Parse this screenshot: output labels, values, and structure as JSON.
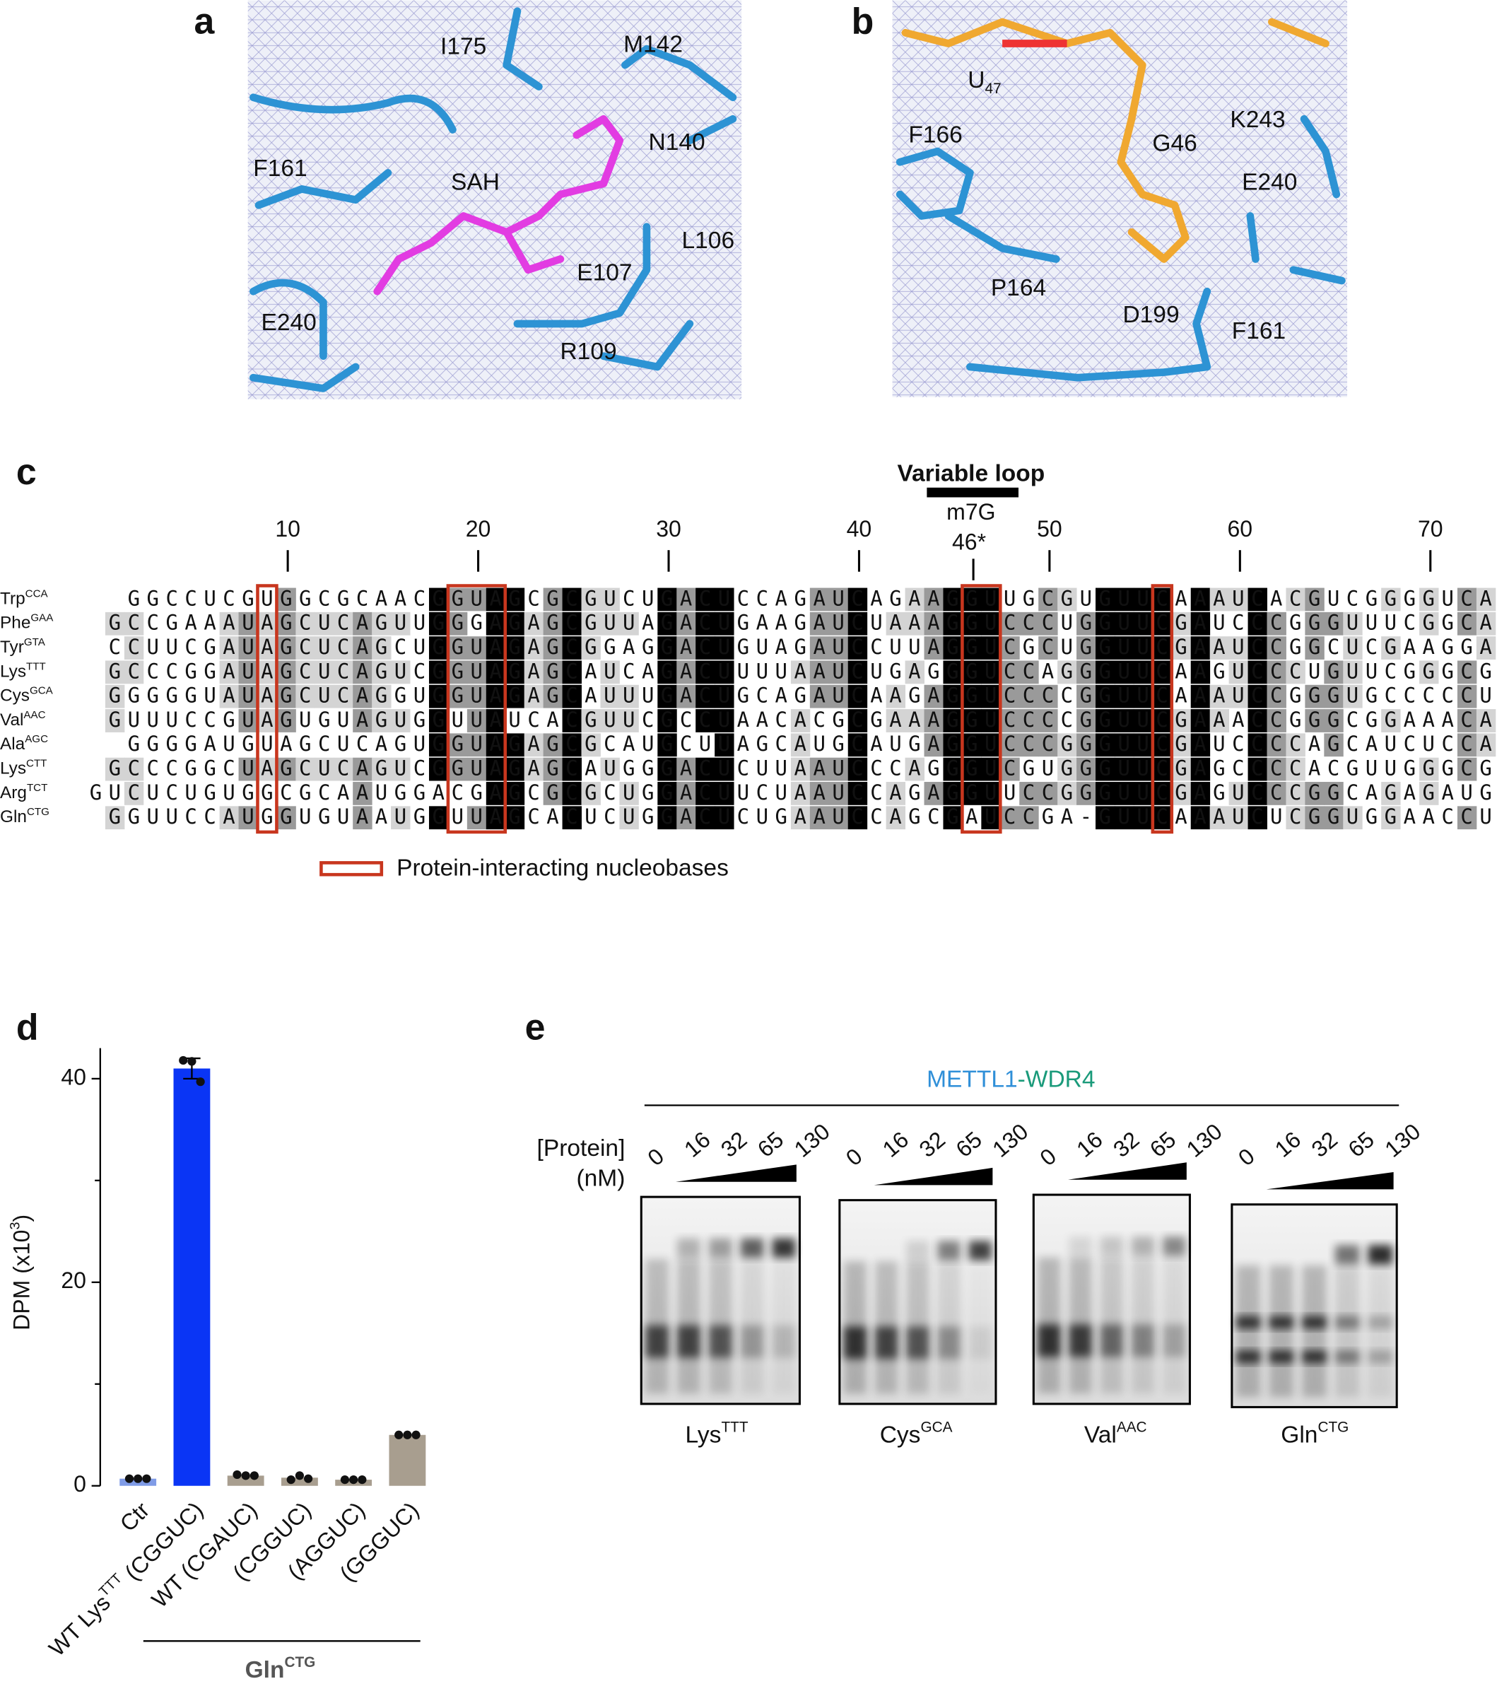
{
  "panel_letters": [
    "a",
    "b",
    "c",
    "d",
    "e"
  ],
  "panel_a": {
    "labels": [
      "I175",
      "M142",
      "N140",
      "F161",
      "SAH",
      "L106",
      "E107",
      "E240",
      "R109"
    ]
  },
  "panel_b": {
    "labels": [
      [
        "U",
        "47"
      ],
      "F166",
      "G46",
      "K243",
      "E240",
      "P164",
      "D199",
      "F161"
    ]
  },
  "panel_c": {
    "header": "Variable loop",
    "modification": "m7G",
    "modified_position": {
      "value": 46,
      "label": "46*"
    },
    "position_ticks": [
      10,
      20,
      30,
      40,
      50,
      60,
      70
    ],
    "rows": [
      {
        "name": "Trp",
        "anticodon": "CCA",
        "sequence": "  GGCCUCGUGGCGCAACGGUAGCGCGUCUGACUCCAGAUCAGAAGGUUGCGUGUUCAAAUCACGUCGGGGUCA"
      },
      {
        "name": "Phe",
        "anticodon": "GAA",
        "sequence": " GCCGAAAUAGCUCAGUUGGGAGAGCGUUAGACUGAAGAUCUAAAGGUCCCUGGUUCGAUCCCGGGUUUCGGCA"
      },
      {
        "name": "Tyr",
        "anticodon": "GTA",
        "sequence": " CCUUCGAUAGCUCAGCUGGUAGAGCGGAGGACUGUAGAUCCUUAGGUCGCUGGUUCGAAUCCGGCUCGAAGGA"
      },
      {
        "name": "Lys",
        "anticodon": "TTT",
        "sequence": " GCCCGGAUAGCUCAGUCGGUAGAGCAUCAGACUUUUAAUCUGAGGGUCCAGGGUUCAAGUCCCUGUUCGGGCG"
      },
      {
        "name": "Cys",
        "anticodon": "GCA",
        "sequence": " GGGGGUAUAGCUCAGGUGGUAGAGCAUUUGACUGCAGAUCAAGAGGUCCCCGGUUCAAAUCCGGGUGCCCCCU"
      },
      {
        "name": "Val",
        "anticodon": "AAC",
        "sequence": " GUUUCCGUAGUGUAGUGGUUAUCACGUUCGCCUAACACGCGAAAGGUCCCCGGUUCGAAACCGGGCGGAAACA"
      },
      {
        "name": "Ala",
        "anticodon": "AGC",
        "sequence": "  GGGGAUGUAGCUCAGUGGUAGAGCGCAUGCUUAGCAUGCAUGAGGUCCCGGGUUCGAUCCCCAGCAUCUCCA"
      },
      {
        "name": "Lys",
        "anticodon": "CTT",
        "sequence": " GCCCGGCUAGCUCAGUCGGUAGAGCAUGGGACUCUUAAUCCCAGGGUCGUGGGUUCGAGCCCCACGUUGGGCG"
      },
      {
        "name": "Arg",
        "anticodon": "TCT",
        "sequence": "GUCUCUGUGGCGCAAUGGACGAGCGCGCUGGACUUCUAAUCCAGAGGUUCCGGGUUCGAGUCCCGGCAGAGAUG"
      },
      {
        "name": "Gln",
        "anticodon": "CTG",
        "sequence": " GGUUCCAUGGUGUAAUGGUUAGCACUCUGGACUCUGAAUCCAGCGAUCCGA-GUUCAAAUCUCGGUGGAACCU"
      }
    ],
    "legend": "Protein-interacting nucleobases"
  },
  "chart_data": {
    "type": "bar",
    "ylabel": [
      "DPM (x10",
      "3",
      ")"
    ],
    "categories": [
      "Ctr",
      [
        "WT Lys",
        "TTT",
        " (CGGUC)"
      ],
      "WT (CGAUC)",
      "(CGGUC)",
      "(AGGUC)",
      "(GGGUC)"
    ],
    "values": [
      0.7,
      41,
      1.0,
      0.8,
      0.6,
      5.0
    ],
    "errors": [
      null,
      1,
      null,
      null,
      null,
      null
    ],
    "points": [
      [
        0.7,
        0.7,
        0.7
      ],
      [
        41.8,
        41.7,
        39.7
      ],
      [
        1.1,
        1.0,
        1.0
      ],
      [
        0.6,
        1.0,
        0.7
      ],
      [
        0.6,
        0.6,
        0.6
      ],
      [
        5.0,
        5.0,
        5.0
      ]
    ],
    "colors": [
      "#7f9be6",
      "#0a35f5",
      "#a89e8f",
      "#a89e8f",
      "#a89e8f",
      "#a89e8f"
    ],
    "ylim": [
      0,
      43
    ],
    "yticks": [
      0,
      20,
      40
    ],
    "yticks_minor": [
      10,
      30
    ],
    "group_label": [
      "Gln",
      "CTG"
    ]
  },
  "panel_e": {
    "title_parts": [
      "METTL1",
      "-",
      "WDR4"
    ],
    "title_colors": [
      "#2f8fd8",
      "#1a9a7a",
      "#1a9a7a"
    ],
    "concentration_label": [
      "[Protein]",
      "(nM)"
    ],
    "concentrations": [
      0,
      16,
      32,
      65,
      130
    ],
    "gels": [
      [
        "Lys",
        "TTT"
      ],
      [
        "Cys",
        "GCA"
      ],
      [
        "Val",
        "AAC"
      ],
      [
        "Gln",
        "CTG"
      ]
    ]
  }
}
